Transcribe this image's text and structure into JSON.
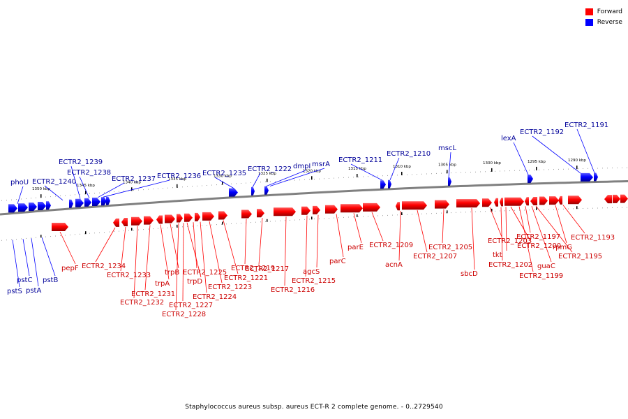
{
  "colors": {
    "forward": "#ff0000",
    "reverse": "#0000ff",
    "backbone": "#808080",
    "forward_label": "#cc0000",
    "reverse_label": "#000099"
  },
  "legend": {
    "forward": "Forward",
    "reverse": "Reverse"
  },
  "caption": "Staphylococcus aureus subsp. aureus ECT-R 2 complete genome. - 0..2729540",
  "scale_ticks": [
    "1290 kbp",
    "1295 kbp",
    "1300 kbp",
    "1305 kbp",
    "1310 kbp",
    "1315 kbp",
    "1320 kbp",
    "1325 kbp",
    "1330 kbp",
    "1335 kbp",
    "1340 kbp",
    "1345 kbp",
    "1350 kbp"
  ],
  "forward_gene_labels": [
    "pepF",
    "ECTR2_1234",
    "ECTR2_1233",
    "ECTR2_1232",
    "ECTR2_1231",
    "trpA",
    "trpB",
    "ECTR2_1228",
    "ECTR2_1227",
    "trpD",
    "ECTR2_1225",
    "ECTR2_1224",
    "ECTR2_1223",
    "ECTR2_1221",
    "ECTR2_1219",
    "ECTR2_1217",
    "ECTR2_1216",
    "ECTR2_1215",
    "agcS",
    "parC",
    "parE",
    "ECTR2_1209",
    "acnA",
    "ECTR2_1207",
    "ECTR2_1205",
    "sbcD",
    "ECTR2_1203",
    "ECTR2_1202",
    "tkt",
    "ECTR2_1200",
    "ECTR2_1199",
    "ECTR2_1197",
    "guaC",
    "ECTR2_1195",
    "rpmG",
    "ECTR2_1193"
  ],
  "reverse_gene_labels": [
    "pstS",
    "pstC",
    "pstA",
    "pstB",
    "phoU",
    "ECTR2_1240",
    "ECTR2_1239",
    "ECTR2_1238",
    "ECTR2_1237",
    "ECTR2_1236",
    "ECTR2_1235",
    "ECTR2_1222",
    "dmpI",
    "msrA",
    "ECTR2_1211",
    "ECTR2_1210",
    "mscL",
    "lexA",
    "ECTR2_1192",
    "ECTR2_1191"
  ]
}
